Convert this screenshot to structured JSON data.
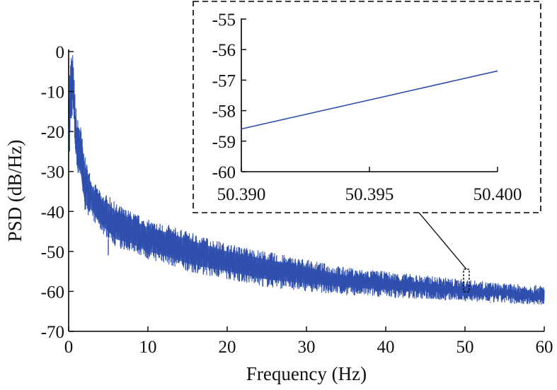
{
  "chart_data": [
    {
      "type": "line",
      "title": "",
      "xlabel": "Frequency (Hz)",
      "ylabel": "PSD (dB/Hz)",
      "xlim": [
        0,
        60
      ],
      "ylim": [
        -70,
        0
      ],
      "xticks": [
        "0",
        "10",
        "20",
        "30",
        "40",
        "50",
        "60"
      ],
      "yticks": [
        "0",
        "-10",
        "-20",
        "-30",
        "-40",
        "-50",
        "-60",
        "-70"
      ],
      "grid": false,
      "line_color": "#2e4fae",
      "series": [
        {
          "x": [
            0.05,
            0.3,
            0.5,
            0.8,
            1,
            1.5,
            2,
            3,
            4,
            5,
            6,
            8,
            10,
            12,
            15,
            20,
            25,
            30,
            35,
            40,
            45,
            50,
            55,
            60
          ],
          "upper": [
            -5,
            0,
            0,
            -10,
            -16,
            -18,
            -26,
            -32,
            -35,
            -36,
            -38,
            -40,
            -42,
            -43,
            -45,
            -48,
            -50,
            -52,
            -54,
            -55,
            -56,
            -57,
            -58,
            -58.5
          ],
          "lower": [
            -30,
            -20,
            -15,
            -25,
            -30,
            -32,
            -40,
            -42,
            -45,
            -47,
            -49,
            -50,
            -52,
            -53,
            -55,
            -57,
            -59,
            -60,
            -61,
            -61.5,
            -62,
            -62.5,
            -63,
            -63.5
          ],
          "outliers": [
            {
              "x": 5,
              "y": -51
            },
            {
              "x": 15.6,
              "y": -51.5
            },
            {
              "x": 17,
              "y": -48
            },
            {
              "x": 7,
              "y": -44
            },
            {
              "x": 6.6,
              "y": -45.2
            },
            {
              "x": 24.5,
              "y": -53.5
            },
            {
              "x": 41.2,
              "y": -59.5
            },
            {
              "x": 47.5,
              "y": -61.5
            },
            {
              "x": 53.2,
              "y": -62.6
            }
          ]
        }
      ]
    },
    {
      "type": "line",
      "title": "",
      "xlim": [
        50.39,
        50.4
      ],
      "ylim": [
        -60,
        -55
      ],
      "xticks": [
        "50.390",
        "50.395",
        "50.400"
      ],
      "yticks": [
        "-55",
        "-56",
        "-57",
        "-58",
        "-59",
        "-60"
      ],
      "grid": false,
      "line_color": "#2e4fae",
      "series": [
        {
          "x": [
            50.39,
            50.4
          ],
          "y": [
            -58.6,
            -56.7
          ]
        }
      ]
    }
  ]
}
